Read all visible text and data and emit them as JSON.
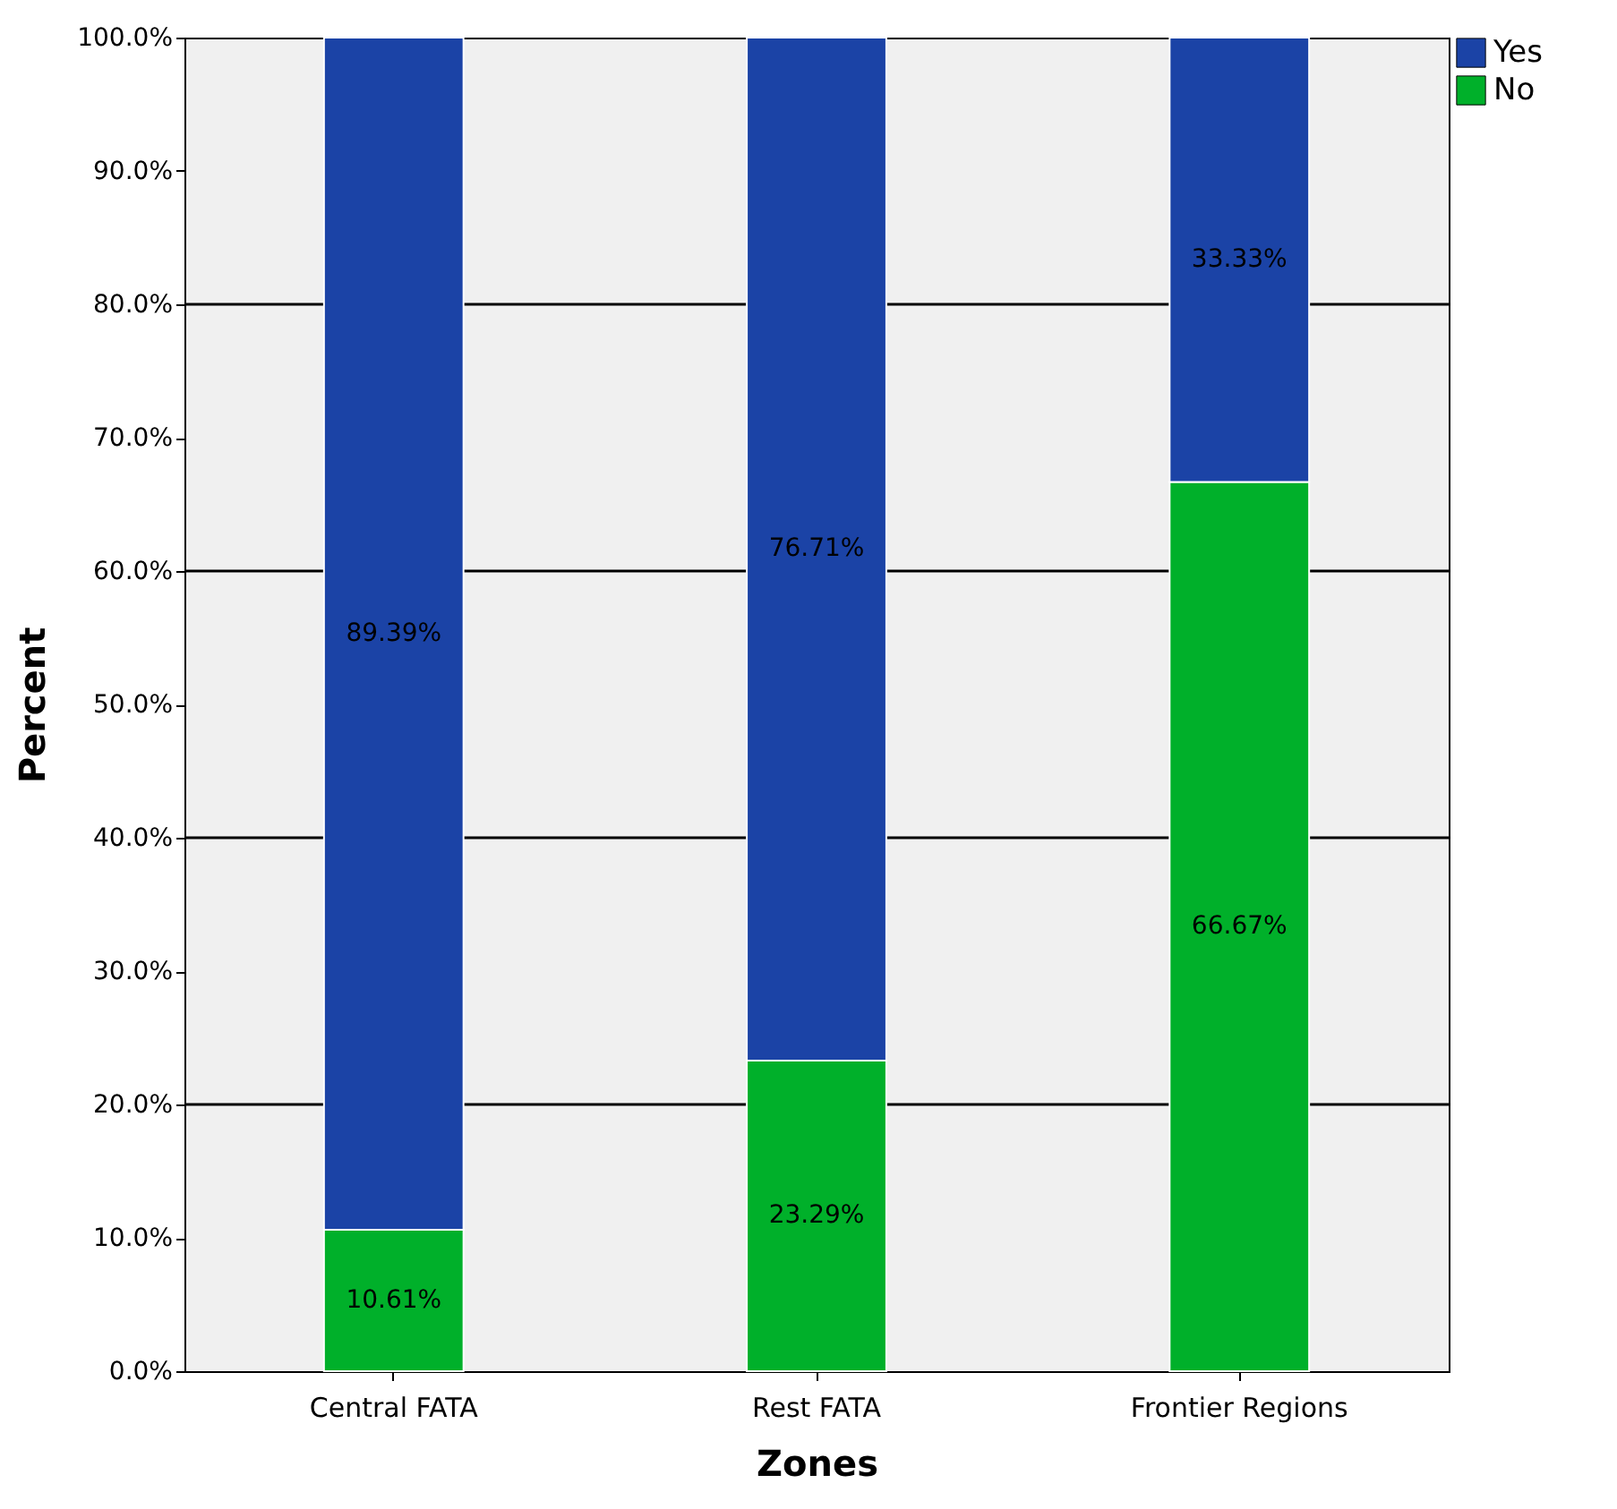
{
  "chart_data": {
    "type": "bar",
    "stacked": true,
    "xlabel": "Zones",
    "ylabel": "Percent",
    "categories": [
      "Central FATA",
      "Rest FATA",
      "Frontier Regions"
    ],
    "series": [
      {
        "name": "No",
        "color": "#00b02a",
        "values": [
          10.61,
          23.29,
          66.67
        ],
        "value_labels": [
          "10.61%",
          "23.29%",
          "66.67%"
        ]
      },
      {
        "name": "Yes",
        "color": "#1b43a6",
        "values": [
          89.39,
          76.71,
          33.33
        ],
        "value_labels": [
          "89.39%",
          "76.71%",
          "33.33%"
        ]
      }
    ],
    "ylim": [
      0,
      100
    ],
    "yticks": [
      {
        "value": 0,
        "label": "0.0%"
      },
      {
        "value": 10,
        "label": "10.0%"
      },
      {
        "value": 20,
        "label": "20.0%"
      },
      {
        "value": 30,
        "label": "30.0%"
      },
      {
        "value": 40,
        "label": "40.0%"
      },
      {
        "value": 50,
        "label": "50.0%"
      },
      {
        "value": 60,
        "label": "60.0%"
      },
      {
        "value": 70,
        "label": "70.0%"
      },
      {
        "value": 80,
        "label": "80.0%"
      },
      {
        "value": 90,
        "label": "90.0%"
      },
      {
        "value": 100,
        "label": "100.0%"
      }
    ],
    "grid": "y",
    "legend": "top right"
  }
}
